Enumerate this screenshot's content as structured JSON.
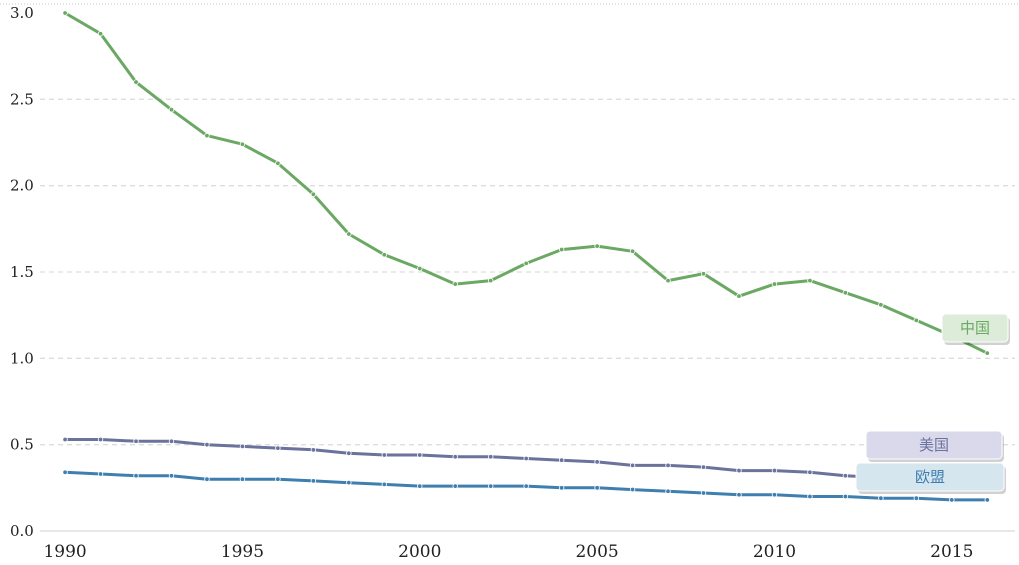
{
  "chart_data": {
    "type": "line",
    "title": "",
    "xlabel": "",
    "ylabel": "",
    "xlim": [
      1989.8,
      2016.5
    ],
    "ylim": [
      0,
      3.0
    ],
    "x_ticks": [
      1990,
      1995,
      2000,
      2005,
      2010,
      2015
    ],
    "y_ticks": [
      0.0,
      0.5,
      1.0,
      1.5,
      2.0,
      2.5,
      3.0
    ],
    "grid": true,
    "x": [
      1990,
      1991,
      1992,
      1993,
      1994,
      1995,
      1996,
      1997,
      1998,
      1999,
      2000,
      2001,
      2002,
      2003,
      2004,
      2005,
      2006,
      2007,
      2008,
      2009,
      2010,
      2011,
      2012,
      2013,
      2014,
      2015,
      2016
    ],
    "series": [
      {
        "name": "中国",
        "color": "#6aa863",
        "label_bg": "#dcecd9",
        "values": [
          3.0,
          2.88,
          2.6,
          2.44,
          2.29,
          2.24,
          2.13,
          1.95,
          1.72,
          1.6,
          1.52,
          1.43,
          1.45,
          1.55,
          1.63,
          1.65,
          1.62,
          1.45,
          1.49,
          1.36,
          1.43,
          1.45,
          1.38,
          1.31,
          1.22,
          1.13,
          1.03
        ]
      },
      {
        "name": "美国",
        "color": "#6b729b",
        "label_bg": "#dad9ec",
        "values": [
          0.53,
          0.53,
          0.52,
          0.52,
          0.5,
          0.49,
          0.48,
          0.47,
          0.45,
          0.44,
          0.44,
          0.43,
          0.43,
          0.42,
          0.41,
          0.4,
          0.38,
          0.38,
          0.37,
          0.35,
          0.35,
          0.34,
          0.32,
          0.31,
          0.29,
          0.28,
          0.27
        ]
      },
      {
        "name": "欧盟",
        "color": "#3f7fb0",
        "label_bg": "#d6e6ef",
        "values": [
          0.34,
          0.33,
          0.32,
          0.32,
          0.3,
          0.3,
          0.3,
          0.29,
          0.28,
          0.27,
          0.26,
          0.26,
          0.26,
          0.26,
          0.25,
          0.25,
          0.24,
          0.23,
          0.22,
          0.21,
          0.21,
          0.2,
          0.2,
          0.19,
          0.19,
          0.18,
          0.18
        ]
      }
    ]
  }
}
